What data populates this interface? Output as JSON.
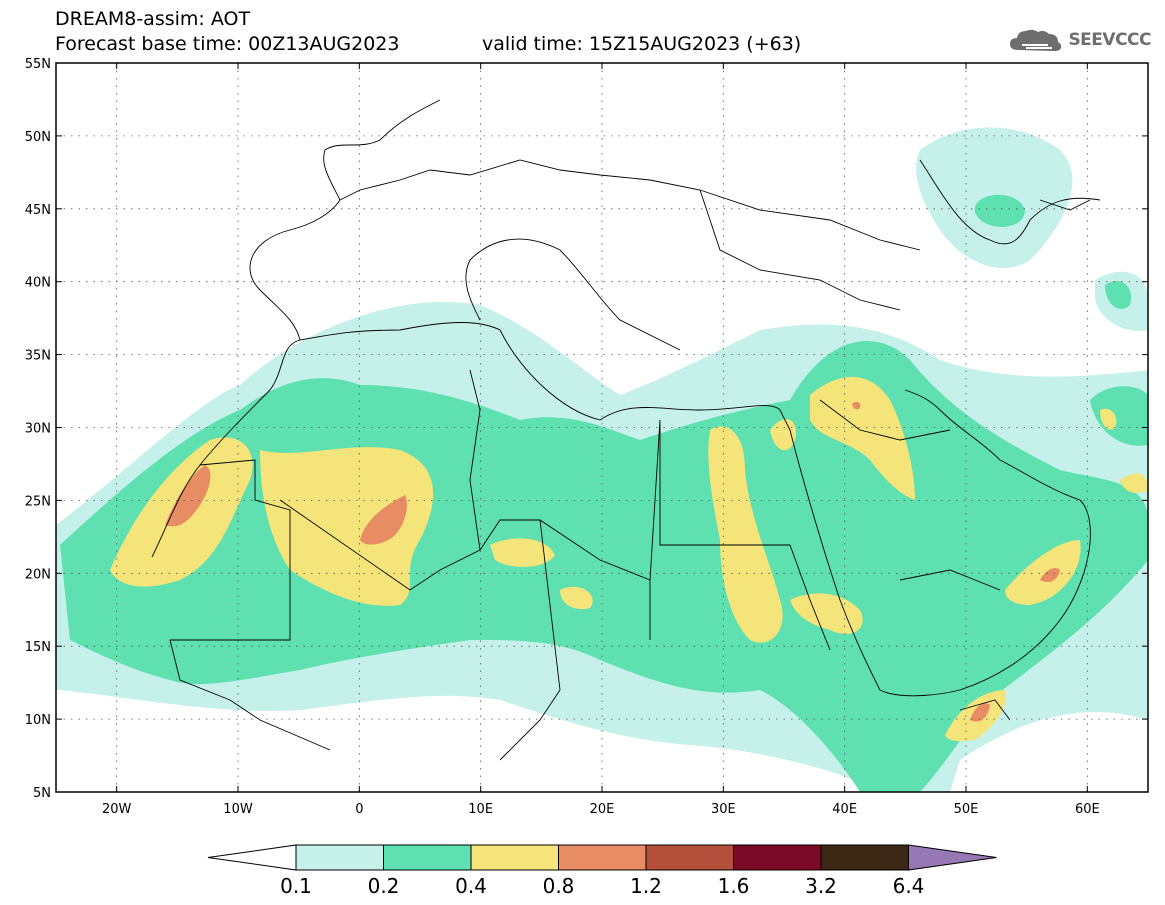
{
  "header": {
    "title": "DREAM8-assim: AOT",
    "base_time": "Forecast base time: 00Z13AUG2023",
    "valid_time": "valid time: 15Z15AUG2023 (+63)"
  },
  "logo": {
    "text": "SEEVCCC",
    "icon": "cloud-logo-icon",
    "color": "#6e6e6e"
  },
  "map": {
    "lon_range": [
      -25,
      65
    ],
    "lat_range": [
      5,
      55
    ],
    "lat_labels": [
      {
        "lat": 55,
        "label": "55N"
      },
      {
        "lat": 50,
        "label": "50N"
      },
      {
        "lat": 45,
        "label": "45N"
      },
      {
        "lat": 40,
        "label": "40N"
      },
      {
        "lat": 35,
        "label": "35N"
      },
      {
        "lat": 30,
        "label": "30N"
      },
      {
        "lat": 25,
        "label": "25N"
      },
      {
        "lat": 20,
        "label": "20N"
      },
      {
        "lat": 15,
        "label": "15N"
      },
      {
        "lat": 10,
        "label": "10N"
      },
      {
        "lat": 5,
        "label": "5N"
      }
    ],
    "lon_labels": [
      {
        "lon": -20,
        "label": "20W"
      },
      {
        "lon": -10,
        "label": "10W"
      },
      {
        "lon": 0,
        "label": "0"
      },
      {
        "lon": 10,
        "label": "10E"
      },
      {
        "lon": 20,
        "label": "20E"
      },
      {
        "lon": 30,
        "label": "30E"
      },
      {
        "lon": 40,
        "label": "40E"
      },
      {
        "lon": 50,
        "label": "50E"
      },
      {
        "lon": 60,
        "label": "60E"
      }
    ],
    "gridlines": "dotted"
  },
  "colorbar": {
    "labels": [
      "0.1",
      "0.2",
      "0.4",
      "0.8",
      "1.2",
      "1.6",
      "3.2",
      "6.4"
    ],
    "colors": [
      "#c6f1ea",
      "#5ee0b0",
      "#f4e47a",
      "#e88c64",
      "#b4503c",
      "#7a0a28",
      "#3c2814",
      "#9878b4"
    ],
    "under_color": "#ffffff"
  },
  "fields": {
    "level_colors": [
      "#c6f1ea",
      "#5ee0b0",
      "#f4e47a",
      "#e88c64"
    ]
  }
}
